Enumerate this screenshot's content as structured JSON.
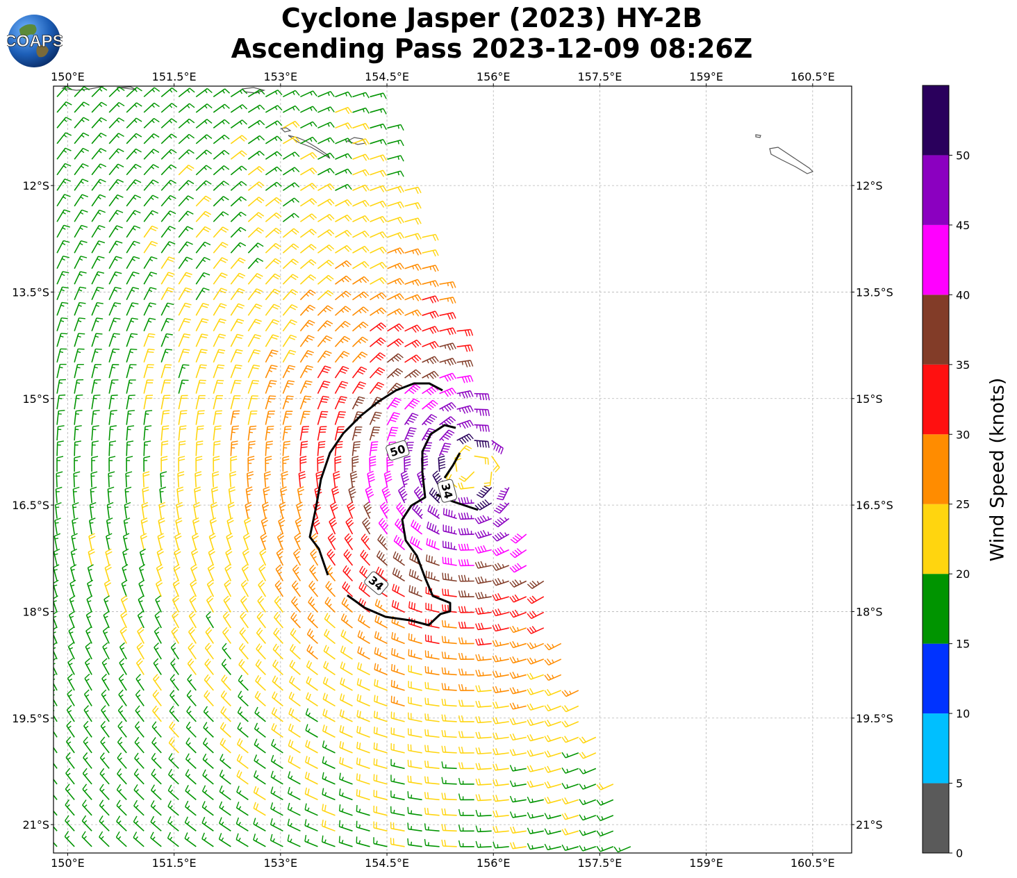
{
  "title": {
    "line1": "Cyclone Jasper (2023) HY-2B",
    "line2": "Ascending Pass 2023-12-09 08:26Z"
  },
  "logo": {
    "text": "COAPS"
  },
  "map": {
    "lon_range": [
      149.8,
      161.05
    ],
    "lat_range": [
      -21.4,
      -10.6
    ],
    "lon_ticks": [
      "150°E",
      "151.5°E",
      "153°E",
      "154.5°E",
      "156°E",
      "157.5°E",
      "159°E",
      "160.5°E"
    ],
    "lon_tick_values": [
      150,
      151.5,
      153,
      154.5,
      156,
      157.5,
      159,
      160.5
    ],
    "lat_ticks": [
      "12°S",
      "13.5°S",
      "15°S",
      "16.5°S",
      "18°S",
      "19.5°S",
      "21°S"
    ],
    "lat_tick_values": [
      -12,
      -13.5,
      -15,
      -16.5,
      -18,
      -19.5,
      -21
    ],
    "gridlines": true,
    "storm_center": {
      "lon": 155.7,
      "lat": -16.0
    },
    "contours": [
      {
        "label": "34",
        "label_lon": 154.35,
        "label_lat": -17.6
      },
      {
        "label": "34",
        "label_lon": 155.35,
        "label_lat": -16.3
      },
      {
        "label": "50",
        "label_lon": 154.65,
        "label_lat": -15.73
      }
    ]
  },
  "colorbar": {
    "label": "Wind Speed (knots)",
    "ticks": [
      "0",
      "5",
      "10",
      "15",
      "20",
      "25",
      "30",
      "35",
      "40",
      "45",
      "50"
    ],
    "bins": [
      {
        "min": 0,
        "max": 5,
        "color": "#5a5a5a"
      },
      {
        "min": 5,
        "max": 10,
        "color": "#00bfff"
      },
      {
        "min": 10,
        "max": 15,
        "color": "#0033ff"
      },
      {
        "min": 15,
        "max": 20,
        "color": "#009400"
      },
      {
        "min": 20,
        "max": 25,
        "color": "#ffd50f"
      },
      {
        "min": 25,
        "max": 30,
        "color": "#ff8c00"
      },
      {
        "min": 30,
        "max": 35,
        "color": "#ff1010"
      },
      {
        "min": 35,
        "max": 40,
        "color": "#823c28"
      },
      {
        "min": 40,
        "max": 45,
        "color": "#ff00ff"
      },
      {
        "min": 45,
        "max": 50,
        "color": "#8b00c0"
      },
      {
        "min": 50,
        "max": 55,
        "color": "#2a005c"
      }
    ]
  }
}
